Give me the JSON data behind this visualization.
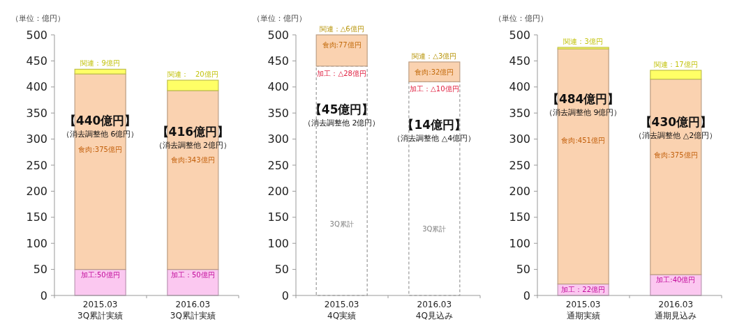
{
  "chart_data": [
    {
      "type": "bar",
      "stacked": true,
      "ylabel": "（単位：億円）",
      "categories": [
        "2015.03\n3Q累計実績",
        "2016.03\n3Q累計実績"
      ],
      "ylim": [
        0,
        500
      ],
      "yticks": [
        0,
        50,
        100,
        150,
        200,
        250,
        300,
        350,
        400,
        450,
        500
      ],
      "legend": false,
      "series": [
        {
          "color": "#fbc8f0",
          "values": [
            50,
            50
          ],
          "value_labels": [
            "加工:50億円",
            "加工：50億円"
          ]
        },
        {
          "color": "#fad2b0",
          "values": [
            375,
            343
          ],
          "value_labels": [
            "食肉:375億円",
            "食肉:343億円"
          ]
        },
        {
          "color": "#ffff66",
          "values": [
            9,
            20
          ],
          "value_labels": [
            "関連：9億円",
            "関連：　20億円"
          ]
        }
      ],
      "annotations": [
        "【440億円】",
        "（消去調整他  6億円）",
        "【416億円】",
        "（消去調整他  2億円）"
      ]
    },
    {
      "type": "bar",
      "stacked": true,
      "ylabel": "（単位：億円）",
      "categories": [
        "2015.03\n4Q実績",
        "2016.03\n4Q見込み"
      ],
      "ylim": [
        0,
        500
      ],
      "yticks": [
        0,
        50,
        100,
        150,
        200,
        250,
        300,
        350,
        400,
        450,
        500
      ],
      "legend": false,
      "series": [
        {
          "name": "3Q累計",
          "color": "#999999",
          "line_style": "dashed",
          "values": [
            440,
            410
          ]
        },
        {
          "color": "#fad2b0",
          "values": [
            60,
            38
          ]
        }
      ],
      "annotations": [
        {
          "text": "関連：△6億円",
          "x": "2015.03\n4Q実績",
          "y": 500
        },
        {
          "text": "食肉:77億円",
          "x": "2015.03\n4Q実績",
          "y": 500
        },
        {
          "text": "加工：△28億円",
          "x": "2015.03\n4Q実績",
          "y": 440
        },
        {
          "text": "関連：△3億円",
          "x": "2016.03\n4Q見込み",
          "y": 448
        },
        {
          "text": "食肉:32億円",
          "x": "2016.03\n4Q見込み",
          "y": 448
        },
        {
          "text": "加工：△10億円",
          "x": "2016.03\n4Q見込み",
          "y": 410
        },
        "【45億円】",
        "（消去調整他  2億円）",
        "【14億円】",
        "（消去調整他  △4億円）"
      ]
    },
    {
      "type": "bar",
      "stacked": true,
      "ylabel": "（単位：億円）",
      "categories": [
        "2015.03\n通期実績",
        "2016.03\n通期見込み"
      ],
      "ylim": [
        0,
        500
      ],
      "yticks": [
        0,
        50,
        100,
        150,
        200,
        250,
        300,
        350,
        400,
        450,
        500
      ],
      "legend": false,
      "series": [
        {
          "color": "#fbc8f0",
          "values": [
            22,
            40
          ],
          "value_labels": [
            "加工：22億円",
            "加工:40億円"
          ]
        },
        {
          "color": "#fad2b0",
          "values": [
            451,
            375
          ],
          "value_labels": [
            "食肉:451億円",
            "食肉:375億円"
          ]
        },
        {
          "color": "#ffff66",
          "values": [
            3,
            17
          ],
          "value_labels": [
            "関連：3億円",
            "関連：17億円"
          ]
        }
      ],
      "annotations": [
        "【484億円】",
        "（消去調整他  9億円）",
        "【430億円】",
        "（消去調整他  △2億円）"
      ]
    }
  ]
}
